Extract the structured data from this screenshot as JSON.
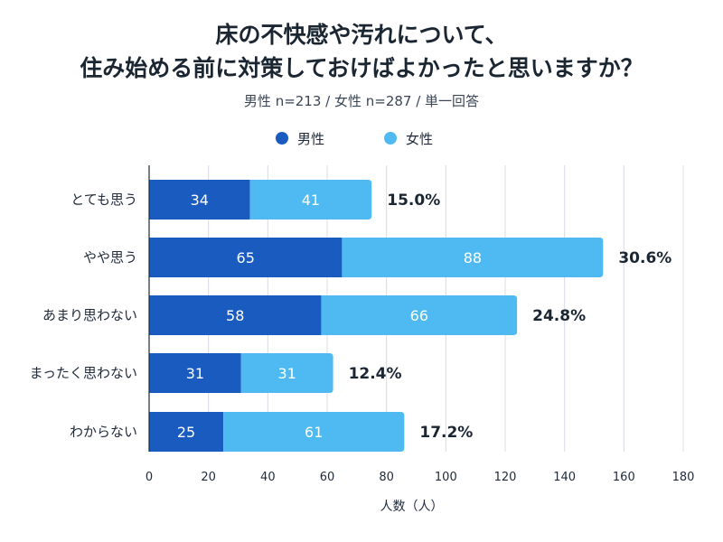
{
  "title_line1": "床の不快感や汚れについて、",
  "title_line2": "住み始める前に対策しておけばよかったと思いますか？",
  "subtitle": "男性 n=213 / 女性 n=287 / 単一回答",
  "colors": {
    "male": "#1a5bbf",
    "female": "#4fbaf2"
  },
  "chart_data": {
    "type": "bar",
    "orientation": "horizontal",
    "stacked": true,
    "title": "床の不快感や汚れについて、住み始める前に対策しておけばよかったと思いますか？",
    "subtitle": "男性 n=213 / 女性 n=287 / 単一回答",
    "categories": [
      "とても思う",
      "やや思う",
      "あまり思わない",
      "まったく思わない",
      "わからない"
    ],
    "series": [
      {
        "name": "男性",
        "color": "#1a5bbf",
        "values": [
          34,
          65,
          58,
          31,
          25
        ]
      },
      {
        "name": "女性",
        "color": "#4fbaf2",
        "values": [
          41,
          88,
          66,
          31,
          61
        ]
      }
    ],
    "total_percent_labels": [
      "15.0%",
      "30.6%",
      "24.8%",
      "12.4%",
      "17.2%"
    ],
    "xlabel": "人数（人）",
    "ylabel": "",
    "xlim": [
      0,
      180
    ],
    "xticks": [
      0,
      20,
      40,
      60,
      80,
      100,
      120,
      140,
      160,
      180
    ],
    "grid": true,
    "legend_position": "top-center"
  }
}
